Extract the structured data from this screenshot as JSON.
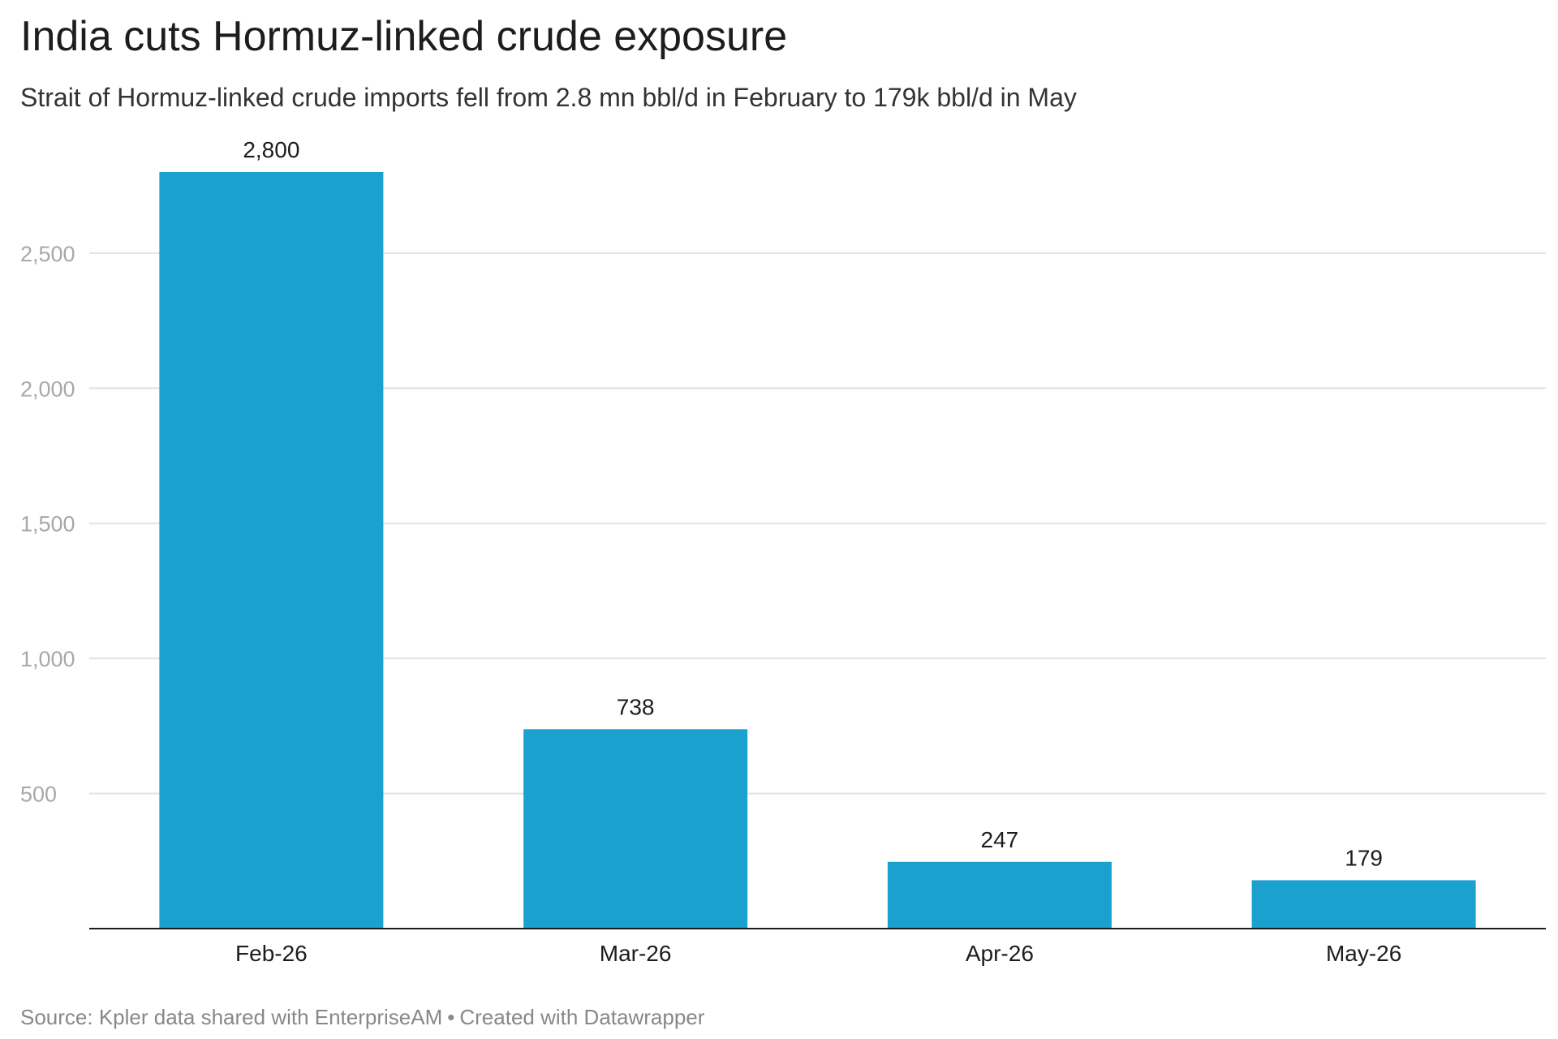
{
  "header": {
    "title": "India cuts Hormuz-linked crude exposure",
    "subtitle": "Strait of Hormuz-linked crude imports fell from 2.8 mn bbl/d in February to 179k bbl/d in May"
  },
  "footer": {
    "source": "Source: Kpler data shared with EnterpriseAM",
    "separator": "•",
    "credit": "Created with Datawrapper"
  },
  "colors": {
    "bar": "#1aa1cd",
    "grid": "#e2e2e2",
    "axis": "#1d1d1d",
    "tick_label": "#a8a8a8",
    "data_label": "#1d1d1d"
  },
  "chart_data": {
    "type": "bar",
    "categories": [
      "Feb-26",
      "Mar-26",
      "Apr-26",
      "May-26"
    ],
    "values": [
      2800,
      738,
      247,
      179
    ],
    "value_labels": [
      "2,800",
      "738",
      "247",
      "179"
    ],
    "title": "India cuts Hormuz-linked crude exposure",
    "subtitle": "Strait of Hormuz-linked crude imports fell from 2.8 mn bbl/d in February to 179k bbl/d in May",
    "xlabel": "",
    "ylabel": "",
    "ylim": [
      0,
      2800
    ],
    "yticks": [
      500,
      1000,
      1500,
      2000,
      2500
    ],
    "ytick_labels": [
      "500",
      "1,000",
      "1,500",
      "2,000",
      "2,500"
    ],
    "grid": true,
    "legend": "none"
  }
}
